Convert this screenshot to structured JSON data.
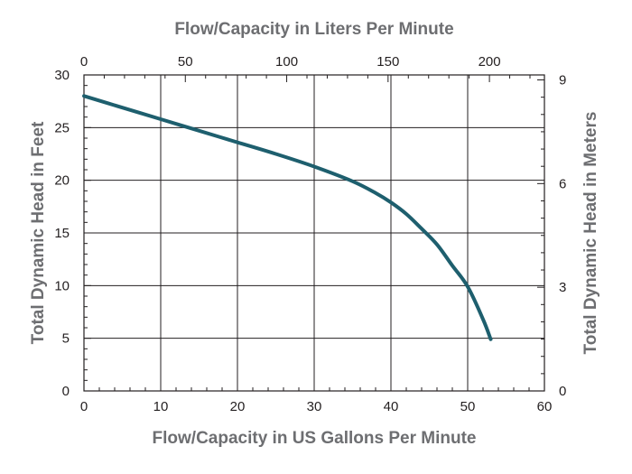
{
  "chart_data": {
    "type": "line",
    "title": "",
    "xlabel": "Flow/Capacity in US Gallons Per Minute",
    "ylabel": "Total Dynamic Head in Feet",
    "x2label": "Flow/Capacity in Liters Per Minute",
    "y2label": "Total Dynamic Head in Meters",
    "xlim": [
      0,
      60
    ],
    "ylim": [
      0,
      30
    ],
    "x_ticks": [
      0,
      10,
      20,
      30,
      40,
      50,
      60
    ],
    "y_ticks": [
      0,
      5,
      10,
      15,
      20,
      25,
      30
    ],
    "x2_ticks": [
      0,
      50,
      100,
      150,
      200
    ],
    "y2_ticks": [
      0,
      3,
      6,
      9
    ],
    "grid": true,
    "color": "#1e5f6e",
    "series": [
      {
        "x": [
          0,
          5,
          10,
          15,
          20,
          25,
          30,
          35,
          38,
          40,
          42,
          44,
          46,
          48,
          50,
          52,
          53
        ],
        "y": [
          28,
          26.9,
          25.8,
          24.7,
          23.6,
          22.5,
          21.3,
          19.9,
          18.8,
          17.9,
          16.8,
          15.4,
          13.9,
          11.9,
          9.9,
          6.8,
          4.9
        ]
      }
    ]
  }
}
